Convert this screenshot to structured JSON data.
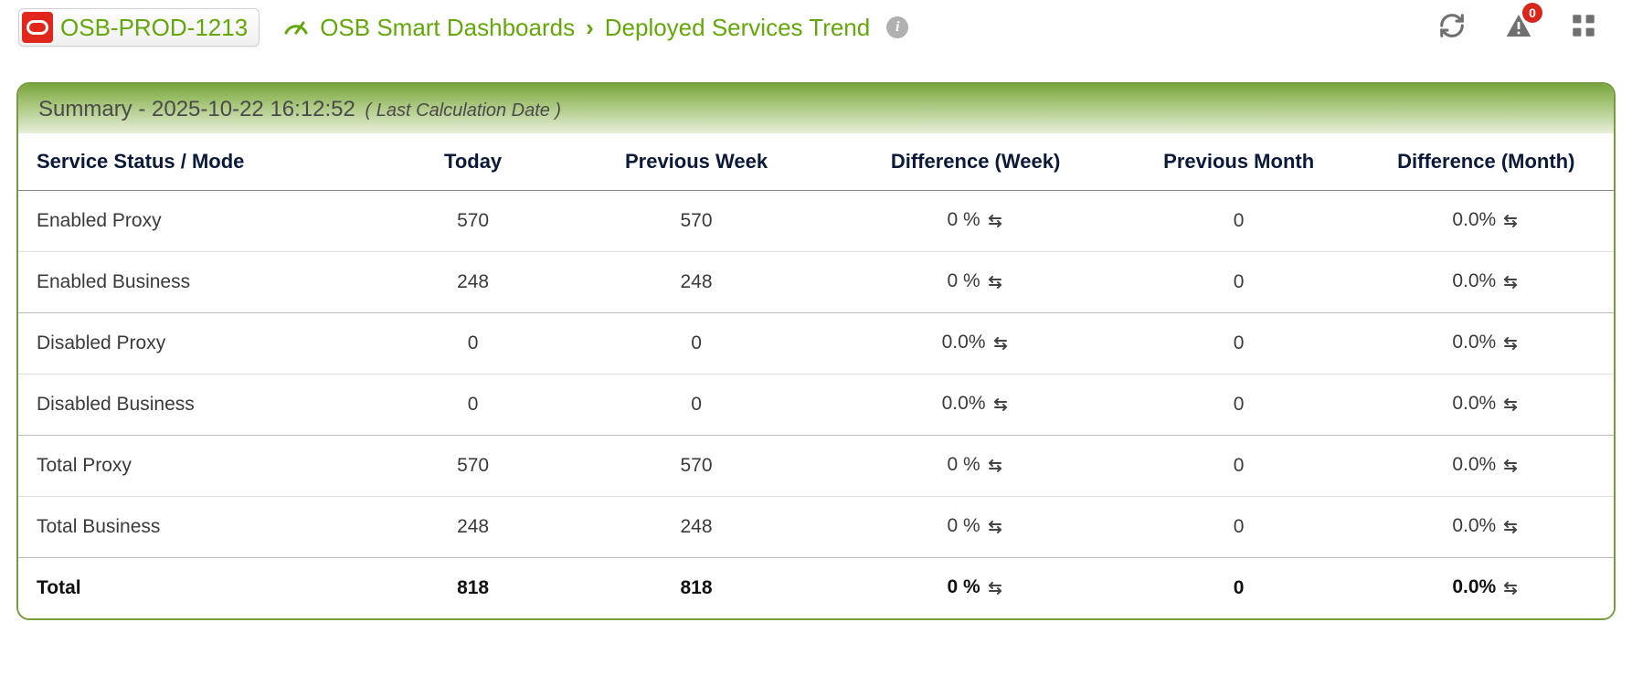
{
  "header": {
    "env_badge": "OSB-PROD-1213",
    "breadcrumb": {
      "root": "OSB Smart Dashboards",
      "page": "Deployed Services Trend"
    },
    "notification_count": "0"
  },
  "panel": {
    "title_prefix": "Summary - ",
    "timestamp": "2025-10-22 16:12:52",
    "subtitle": "( Last Calculation Date )"
  },
  "table": {
    "columns": [
      "Service Status / Mode",
      "Today",
      "Previous Week",
      "Difference (Week)",
      "Previous Month",
      "Difference (Month)"
    ],
    "rows": [
      {
        "label": "Enabled Proxy",
        "today": "570",
        "prev_week": "570",
        "diff_week": "0 %",
        "prev_month": "0",
        "diff_month": "0.0%",
        "group_end": false
      },
      {
        "label": "Enabled Business",
        "today": "248",
        "prev_week": "248",
        "diff_week": "0 %",
        "prev_month": "0",
        "diff_month": "0.0%",
        "group_end": true
      },
      {
        "label": "Disabled Proxy",
        "today": "0",
        "prev_week": "0",
        "diff_week": "0.0%",
        "prev_month": "0",
        "diff_month": "0.0%",
        "group_end": false
      },
      {
        "label": "Disabled Business",
        "today": "0",
        "prev_week": "0",
        "diff_week": "0.0%",
        "prev_month": "0",
        "diff_month": "0.0%",
        "group_end": true
      },
      {
        "label": "Total Proxy",
        "today": "570",
        "prev_week": "570",
        "diff_week": "0 %",
        "prev_month": "0",
        "diff_month": "0.0%",
        "group_end": false
      },
      {
        "label": "Total Business",
        "today": "248",
        "prev_week": "248",
        "diff_week": "0 %",
        "prev_month": "0",
        "diff_month": "0.0%",
        "group_end": true
      }
    ],
    "total": {
      "label": "Total",
      "today": "818",
      "prev_week": "818",
      "diff_week": "0 %",
      "prev_month": "0",
      "diff_month": "0.0%"
    }
  },
  "colors": {
    "accent_green": "#64a70b",
    "panel_border": "#769c3f",
    "badge_red": "#d9261c",
    "oracle_red": "#e1261c",
    "icon_gray": "#707070"
  }
}
